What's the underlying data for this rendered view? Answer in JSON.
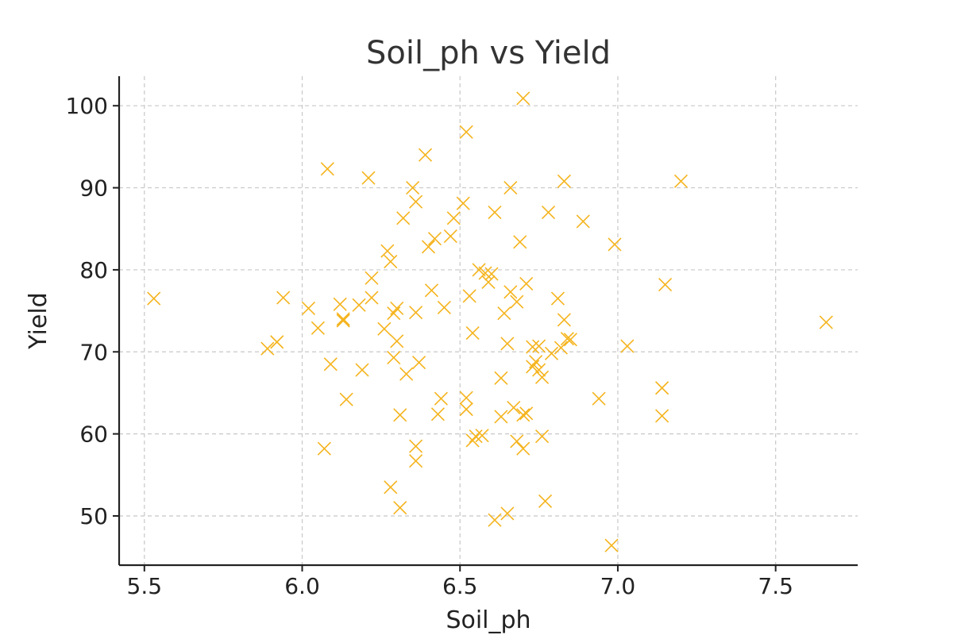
{
  "chart_data": {
    "type": "scatter",
    "title": "Soil_ph vs Yield",
    "xlabel": "Soil_ph",
    "ylabel": "Yield",
    "xlim": [
      5.42,
      7.76
    ],
    "ylim": [
      44,
      103.6
    ],
    "xticks": [
      5.5,
      6.0,
      6.5,
      7.0,
      7.5
    ],
    "xtick_labels": [
      "5.5",
      "6.0",
      "6.5",
      "7.0",
      "7.5"
    ],
    "yticks": [
      50,
      60,
      70,
      80,
      90,
      100
    ],
    "ytick_labels": [
      "50",
      "60",
      "70",
      "80",
      "90",
      "100"
    ],
    "grid": true,
    "marker": "x",
    "color": "#f5b41e",
    "points": [
      [
        5.53,
        76.5
      ],
      [
        5.89,
        70.4
      ],
      [
        5.92,
        71.2
      ],
      [
        5.94,
        76.6
      ],
      [
        6.02,
        75.3
      ],
      [
        6.05,
        72.9
      ],
      [
        6.07,
        58.2
      ],
      [
        6.08,
        92.3
      ],
      [
        6.09,
        68.5
      ],
      [
        6.12,
        75.8
      ],
      [
        6.13,
        74.0
      ],
      [
        6.13,
        73.8
      ],
      [
        6.14,
        64.2
      ],
      [
        6.18,
        75.7
      ],
      [
        6.19,
        67.8
      ],
      [
        6.21,
        91.2
      ],
      [
        6.22,
        79.0
      ],
      [
        6.22,
        76.6
      ],
      [
        6.26,
        72.8
      ],
      [
        6.27,
        82.3
      ],
      [
        6.28,
        53.5
      ],
      [
        6.28,
        81.0
      ],
      [
        6.29,
        69.3
      ],
      [
        6.29,
        74.7
      ],
      [
        6.3,
        75.3
      ],
      [
        6.3,
        71.3
      ],
      [
        6.31,
        51.0
      ],
      [
        6.31,
        62.3
      ],
      [
        6.32,
        86.3
      ],
      [
        6.33,
        67.3
      ],
      [
        6.35,
        90.0
      ],
      [
        6.36,
        88.3
      ],
      [
        6.36,
        58.5
      ],
      [
        6.36,
        56.7
      ],
      [
        6.36,
        74.8
      ],
      [
        6.37,
        68.7
      ],
      [
        6.39,
        94.0
      ],
      [
        6.4,
        82.8
      ],
      [
        6.41,
        77.5
      ],
      [
        6.42,
        83.8
      ],
      [
        6.43,
        62.4
      ],
      [
        6.44,
        64.3
      ],
      [
        6.45,
        75.4
      ],
      [
        6.47,
        84.1
      ],
      [
        6.48,
        86.3
      ],
      [
        6.51,
        88.1
      ],
      [
        6.52,
        63.0
      ],
      [
        6.52,
        64.4
      ],
      [
        6.52,
        96.8
      ],
      [
        6.53,
        76.8
      ],
      [
        6.54,
        72.3
      ],
      [
        6.54,
        59.2
      ],
      [
        6.55,
        59.7
      ],
      [
        6.56,
        80.0
      ],
      [
        6.57,
        59.8
      ],
      [
        6.58,
        79.6
      ],
      [
        6.59,
        78.5
      ],
      [
        6.6,
        79.5
      ],
      [
        6.61,
        87.0
      ],
      [
        6.61,
        49.5
      ],
      [
        6.63,
        66.8
      ],
      [
        6.63,
        62.1
      ],
      [
        6.64,
        74.7
      ],
      [
        6.65,
        50.3
      ],
      [
        6.65,
        71.0
      ],
      [
        6.66,
        77.3
      ],
      [
        6.66,
        90.0
      ],
      [
        6.67,
        63.2
      ],
      [
        6.68,
        59.1
      ],
      [
        6.68,
        76.1
      ],
      [
        6.69,
        83.4
      ],
      [
        6.7,
        62.3
      ],
      [
        6.7,
        100.9
      ],
      [
        6.7,
        58.2
      ],
      [
        6.71,
        62.5
      ],
      [
        6.71,
        78.3
      ],
      [
        6.73,
        70.6
      ],
      [
        6.73,
        68.2
      ],
      [
        6.74,
        68.8
      ],
      [
        6.75,
        70.7
      ],
      [
        6.75,
        67.8
      ],
      [
        6.76,
        66.9
      ],
      [
        6.76,
        59.7
      ],
      [
        6.77,
        51.8
      ],
      [
        6.78,
        87.0
      ],
      [
        6.79,
        69.8
      ],
      [
        6.81,
        76.5
      ],
      [
        6.82,
        70.5
      ],
      [
        6.83,
        90.8
      ],
      [
        6.83,
        73.9
      ],
      [
        6.84,
        71.6
      ],
      [
        6.85,
        71.5
      ],
      [
        6.89,
        85.9
      ],
      [
        6.94,
        64.3
      ],
      [
        6.98,
        46.4
      ],
      [
        6.99,
        83.1
      ],
      [
        7.03,
        70.7
      ],
      [
        7.14,
        65.6
      ],
      [
        7.14,
        62.2
      ],
      [
        7.15,
        78.2
      ],
      [
        7.2,
        90.8
      ],
      [
        7.66,
        73.6
      ]
    ]
  }
}
